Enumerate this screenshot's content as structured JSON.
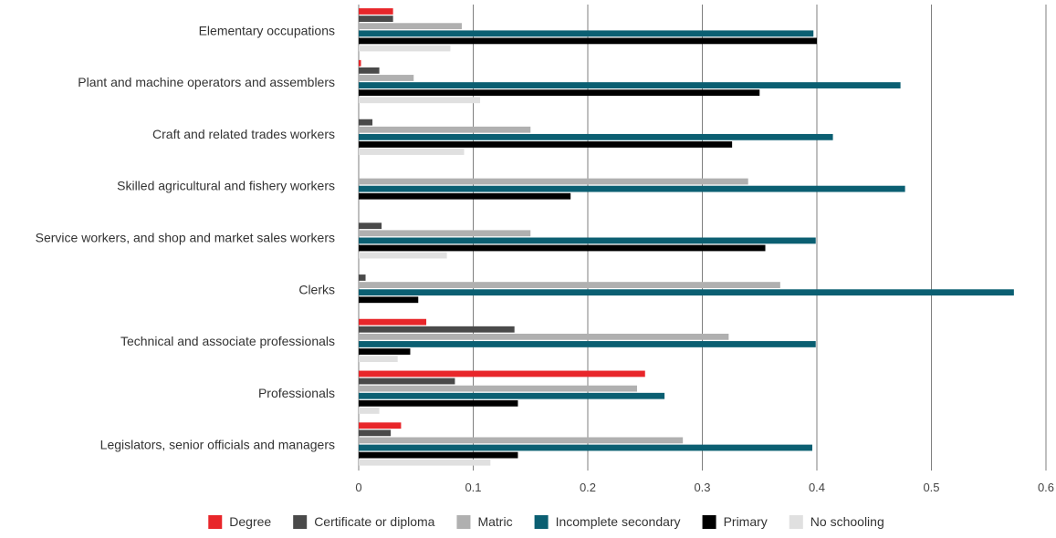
{
  "chart_data": {
    "type": "bar",
    "orientation": "horizontal",
    "categories": [
      "Elementary occupations",
      "Plant and machine operators and assemblers",
      "Craft and related trades workers",
      "Skilled agricultural and fishery workers",
      "Service workers, and shop and market sales workers",
      "Clerks",
      "Technical and associate professionals",
      "Professionals",
      "Legislators, senior officials and managers"
    ],
    "series": [
      {
        "name": "Degree",
        "color": "#e8262a",
        "values": [
          0.03,
          0.002,
          0,
          0,
          0,
          0,
          0.059,
          0.25,
          0.037
        ]
      },
      {
        "name": "Certificate or diploma",
        "color": "#4a4a4a",
        "values": [
          0.03,
          0.018,
          0.012,
          0,
          0.02,
          0.006,
          0.136,
          0.084,
          0.028
        ]
      },
      {
        "name": "Matric",
        "color": "#b0b0b0",
        "values": [
          0.09,
          0.048,
          0.15,
          0.34,
          0.15,
          0.368,
          0.323,
          0.243,
          0.283
        ]
      },
      {
        "name": "Incomplete secondary",
        "color": "#0b5f72",
        "values": [
          0.397,
          0.473,
          0.414,
          0.477,
          0.399,
          0.572,
          0.399,
          0.267,
          0.396
        ]
      },
      {
        "name": "Primary",
        "color": "#000000",
        "values": [
          0.4,
          0.35,
          0.326,
          0.185,
          0.355,
          0.052,
          0.045,
          0.139,
          0.139
        ]
      },
      {
        "name": "No schooling",
        "color": "#e0e0e0",
        "values": [
          0.08,
          0.106,
          0.092,
          0,
          0.077,
          0,
          0.034,
          0.018,
          0.115
        ]
      }
    ],
    "xlim": [
      0,
      0.6
    ],
    "xticks": [
      "0",
      "0.1",
      "0.2",
      "0.3",
      "0.4",
      "0.5",
      "0.6"
    ],
    "grid": "vertical",
    "legend_position": "bottom",
    "title": "",
    "xlabel": "",
    "ylabel": ""
  }
}
